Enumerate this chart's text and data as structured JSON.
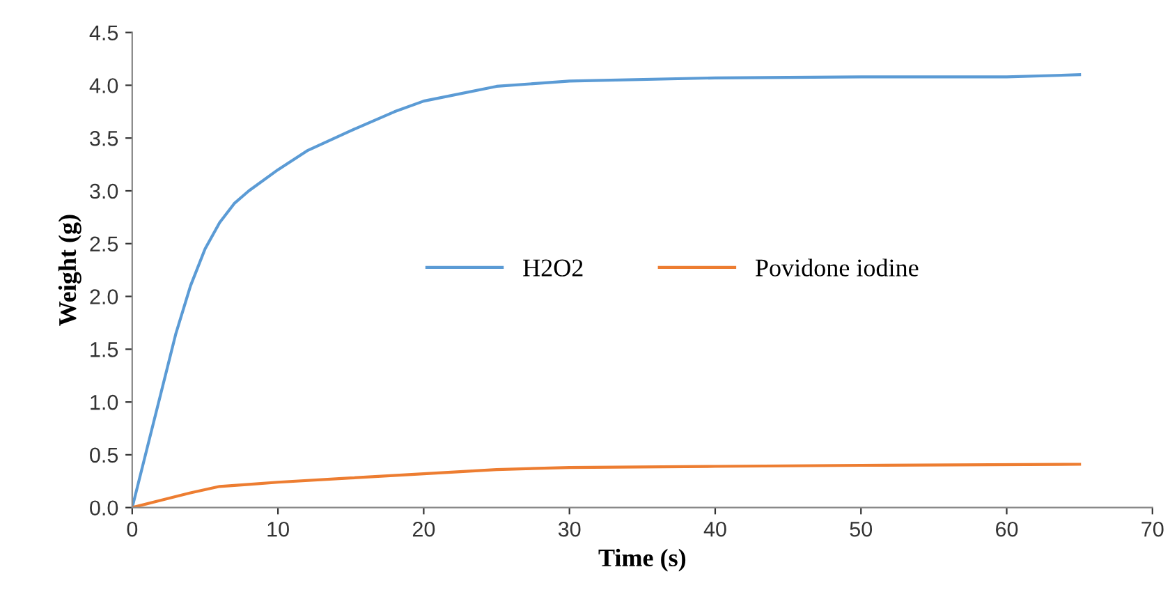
{
  "chart_data": {
    "type": "line",
    "xlabel": "Time (s)",
    "ylabel": "Weight (g)",
    "xlim": [
      0,
      70
    ],
    "xticks": [
      0,
      10,
      20,
      30,
      40,
      50,
      60,
      70
    ],
    "ylim": [
      0,
      4.5
    ],
    "yticks": [
      {
        "value": 0,
        "label": "0.0"
      },
      {
        "value": 0.5,
        "label": "0.5"
      },
      {
        "value": 1,
        "label": "1.0"
      },
      {
        "value": 1.5,
        "label": "1.5"
      },
      {
        "value": 2,
        "label": "2.0"
      },
      {
        "value": 2.5,
        "label": "2.5"
      },
      {
        "value": 3,
        "label": "3.0"
      },
      {
        "value": 3.5,
        "label": "3.5"
      },
      {
        "value": 4,
        "label": "4.0"
      },
      {
        "value": 4.5,
        "label": "4.5"
      }
    ],
    "grid": false,
    "legend": "center",
    "marker": "none",
    "line_style": "solid",
    "series": [
      {
        "name": "H2O2",
        "color": "#5b9bd5",
        "x": [
          0,
          1,
          2,
          3,
          4,
          5,
          6,
          7,
          8,
          10,
          12,
          15,
          18,
          20,
          25,
          30,
          40,
          50,
          60,
          65
        ],
        "values": [
          0,
          0.55,
          1.1,
          1.65,
          2.1,
          2.45,
          2.7,
          2.88,
          3.0,
          3.2,
          3.38,
          3.57,
          3.75,
          3.85,
          3.99,
          4.04,
          4.07,
          4.08,
          4.08,
          4.1
        ]
      },
      {
        "name": "Povidone iodine",
        "color": "#ed7d31",
        "x": [
          0,
          2,
          4,
          6,
          8,
          10,
          15,
          20,
          25,
          30,
          40,
          50,
          65
        ],
        "values": [
          0,
          0.07,
          0.14,
          0.2,
          0.22,
          0.24,
          0.28,
          0.32,
          0.36,
          0.38,
          0.39,
          0.4,
          0.41
        ]
      }
    ]
  }
}
